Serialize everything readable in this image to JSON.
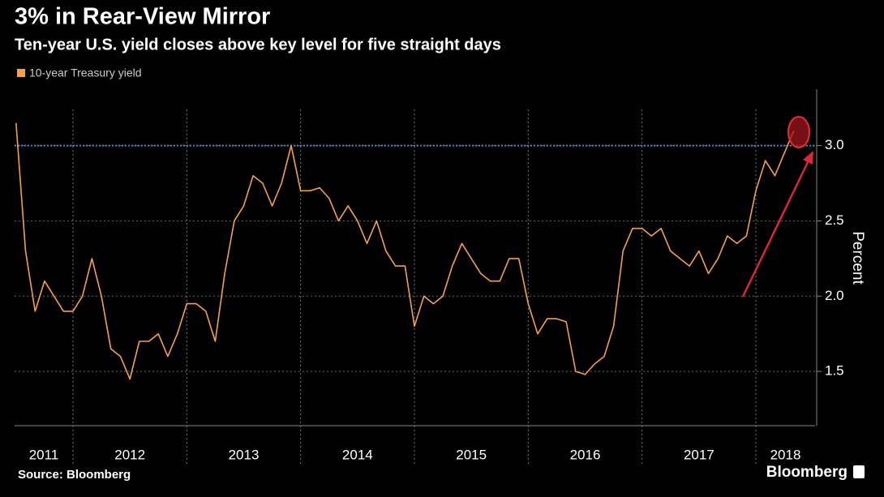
{
  "chart_data": {
    "type": "line",
    "title": "3% in Rear-View Mirror",
    "subtitle": "Ten-year U.S. yield closes above key level for five straight days",
    "y_axis_label": "Percent",
    "source": "Source: Bloomberg",
    "brand": "Bloomberg",
    "x": [
      2011.5,
      2011.583,
      2011.667,
      2011.75,
      2011.833,
      2011.917,
      2012.0,
      2012.083,
      2012.167,
      2012.25,
      2012.333,
      2012.417,
      2012.5,
      2012.583,
      2012.667,
      2012.75,
      2012.833,
      2012.917,
      2013.0,
      2013.083,
      2013.167,
      2013.25,
      2013.333,
      2013.417,
      2013.5,
      2013.583,
      2013.667,
      2013.75,
      2013.833,
      2013.917,
      2014.0,
      2014.083,
      2014.167,
      2014.25,
      2014.333,
      2014.417,
      2014.5,
      2014.583,
      2014.667,
      2014.75,
      2014.833,
      2014.917,
      2015.0,
      2015.083,
      2015.167,
      2015.25,
      2015.333,
      2015.417,
      2015.5,
      2015.583,
      2015.667,
      2015.75,
      2015.833,
      2015.917,
      2016.0,
      2016.083,
      2016.167,
      2016.25,
      2016.333,
      2016.417,
      2016.5,
      2016.583,
      2016.667,
      2016.75,
      2016.833,
      2016.917,
      2017.0,
      2017.083,
      2017.167,
      2017.25,
      2017.333,
      2017.417,
      2017.5,
      2017.583,
      2017.667,
      2017.75,
      2017.833,
      2017.917,
      2018.0,
      2018.083,
      2018.167,
      2018.25,
      2018.333
    ],
    "series": [
      {
        "name": "10-year Treasury yield",
        "color": "#f5a04a",
        "values": [
          3.15,
          2.3,
          1.9,
          2.1,
          2.0,
          1.9,
          1.9,
          2.0,
          2.25,
          2.0,
          1.65,
          1.6,
          1.45,
          1.7,
          1.7,
          1.75,
          1.6,
          1.75,
          1.95,
          1.95,
          1.9,
          1.7,
          2.15,
          2.5,
          2.6,
          2.8,
          2.75,
          2.6,
          2.75,
          3.0,
          2.7,
          2.7,
          2.72,
          2.65,
          2.5,
          2.6,
          2.5,
          2.35,
          2.5,
          2.3,
          2.2,
          2.2,
          1.8,
          2.0,
          1.95,
          2.0,
          2.2,
          2.35,
          2.25,
          2.15,
          2.1,
          2.1,
          2.25,
          2.25,
          1.95,
          1.75,
          1.85,
          1.85,
          1.83,
          1.5,
          1.48,
          1.55,
          1.6,
          1.8,
          2.3,
          2.45,
          2.45,
          2.4,
          2.45,
          2.3,
          2.25,
          2.2,
          2.3,
          2.15,
          2.25,
          2.4,
          2.35,
          2.4,
          2.7,
          2.9,
          2.8,
          2.95,
          3.1
        ]
      }
    ],
    "threshold": 3,
    "threshold_color": "#4a7fe0",
    "xlim": [
      2011.487,
      2018.52
    ],
    "xgrid": [
      2012,
      2013,
      2014,
      2015,
      2016,
      2017,
      2018
    ],
    "year_labels": [
      2011,
      2012,
      2013,
      2014,
      2015,
      2016,
      2017,
      2018
    ],
    "ylim": [
      1.14,
      3.24
    ],
    "yticks": [
      {
        "value": 1.5,
        "label": "1.5"
      },
      {
        "value": 2,
        "label": "2.0"
      },
      {
        "value": 2.5,
        "label": "2.5"
      },
      {
        "value": 3,
        "label": "3.0"
      }
    ],
    "grid": true,
    "legend": "top-left"
  }
}
